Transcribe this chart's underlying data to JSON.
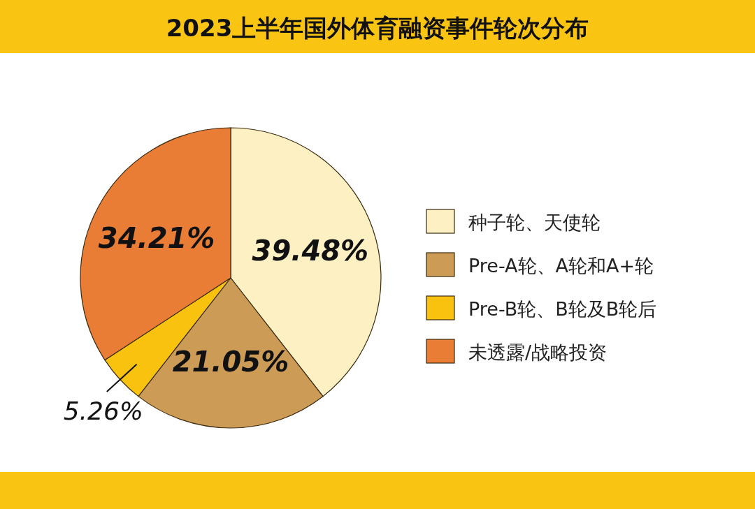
{
  "chart_data": {
    "type": "pie",
    "title": "2023上半年国外体育融资事件轮次分布",
    "categories": [
      "种子轮、天使轮",
      "Pre-A轮、A轮和A+轮",
      "Pre-B轮、B轮及B轮后",
      "未透露/战略投资"
    ],
    "values": [
      39.48,
      21.05,
      5.26,
      34.21
    ],
    "value_labels": [
      "39.48%",
      "21.05%",
      "5.26%",
      "34.21%"
    ],
    "colors": [
      "#fdf0c2",
      "#cc9b55",
      "#f9c20f",
      "#ea7d36"
    ],
    "legend": "right"
  }
}
